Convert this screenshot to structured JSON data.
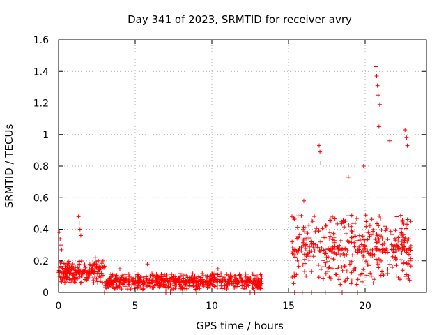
{
  "chart_data": {
    "type": "scatter",
    "title": "Day 341 of 2023, SRMTID for receiver avry",
    "xlabel": "GPS time / hours",
    "ylabel": "SRMTID / TECUs",
    "xlim": [
      0,
      24
    ],
    "ylim": [
      0,
      1.6
    ],
    "x_ticks": [
      0,
      5,
      10,
      15,
      20
    ],
    "x_tick_labels": [
      "0",
      "5",
      "10",
      "15",
      "20"
    ],
    "y_ticks": [
      0,
      0.2,
      0.4,
      0.6,
      0.8,
      1.0,
      1.2,
      1.4,
      1.6
    ],
    "y_tick_labels": [
      "0",
      "0.2",
      "0.4",
      "0.6",
      "0.8",
      "1",
      "1.2",
      "1.4",
      "1.6"
    ],
    "grid": true,
    "marker": "+",
    "series": [
      {
        "name": "SRMTID",
        "color": "#ff0000",
        "segments": [
          {
            "x_start": 0.0,
            "x_end": 3.0,
            "base": 0.13,
            "spread": 0.07,
            "count": 220,
            "spikes": [
              [
                0.05,
                0.38
              ],
              [
                0.1,
                0.34
              ],
              [
                0.15,
                0.3
              ],
              [
                0.2,
                0.27
              ],
              [
                1.3,
                0.48
              ],
              [
                1.35,
                0.44
              ],
              [
                1.4,
                0.4
              ],
              [
                1.45,
                0.36
              ],
              [
                2.4,
                0.22
              ],
              [
                2.6,
                0.2
              ]
            ]
          },
          {
            "x_start": 3.0,
            "x_end": 7.0,
            "base": 0.07,
            "spread": 0.05,
            "count": 260,
            "spikes": [
              [
                3.0,
                0.0
              ],
              [
                4.0,
                0.15
              ],
              [
                5.8,
                0.18
              ],
              [
                6.7,
                0.1
              ]
            ]
          },
          {
            "x_start": 7.0,
            "x_end": 13.3,
            "base": 0.07,
            "spread": 0.05,
            "count": 380,
            "spikes": [
              [
                7.0,
                0.0
              ],
              [
                7.3,
                0.0
              ],
              [
                8.1,
                0.0
              ],
              [
                9.0,
                0.0
              ],
              [
                10.4,
                0.15
              ],
              [
                12.5,
                0.0
              ],
              [
                12.8,
                0.0
              ]
            ]
          },
          {
            "x_start": 15.2,
            "x_end": 23.0,
            "base": 0.27,
            "spread": 0.22,
            "count": 420,
            "spikes": [
              [
                15.4,
                0.0
              ],
              [
                15.9,
                0.0
              ],
              [
                16.0,
                0.58
              ],
              [
                16.5,
                0.0
              ],
              [
                17.0,
                0.93
              ],
              [
                17.05,
                0.89
              ],
              [
                17.1,
                0.82
              ],
              [
                17.4,
                0.0
              ],
              [
                18.3,
                0.0
              ],
              [
                18.5,
                0.0
              ],
              [
                18.9,
                0.73
              ],
              [
                19.5,
                0.0
              ],
              [
                19.9,
                0.8
              ],
              [
                20.7,
                1.43
              ],
              [
                20.75,
                1.37
              ],
              [
                20.8,
                1.31
              ],
              [
                20.85,
                1.25
              ],
              [
                20.9,
                1.05
              ],
              [
                20.95,
                1.19
              ],
              [
                21.6,
                0.96
              ],
              [
                22.6,
                1.03
              ],
              [
                22.7,
                0.98
              ],
              [
                22.75,
                0.93
              ]
            ]
          }
        ]
      }
    ]
  }
}
